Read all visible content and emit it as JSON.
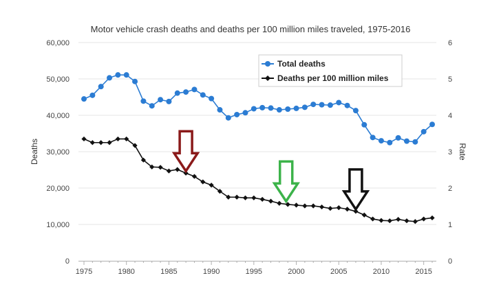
{
  "chart_data": {
    "type": "line",
    "title": "Motor vehicle crash deaths and deaths per 100 million miles traveled, 1975-2016",
    "ylabel": "Deaths",
    "y2label": "Rate",
    "xlim": [
      1975,
      2016
    ],
    "ylim": [
      0,
      60000
    ],
    "y2lim": [
      0,
      6
    ],
    "x_ticks": [
      "1975",
      "1980",
      "1985",
      "1990",
      "1995",
      "2000",
      "2005",
      "2010",
      "2015"
    ],
    "y_ticks": [
      "0",
      "10,000",
      "20,000",
      "30,000",
      "40,000",
      "50,000",
      "60,000"
    ],
    "y2_ticks": [
      "0",
      "1",
      "2",
      "3",
      "4",
      "5",
      "6"
    ],
    "grid": "horizontal",
    "legend_position": "top-right",
    "x": [
      1975,
      1976,
      1977,
      1978,
      1979,
      1980,
      1981,
      1982,
      1983,
      1984,
      1985,
      1986,
      1987,
      1988,
      1989,
      1990,
      1991,
      1992,
      1993,
      1994,
      1995,
      1996,
      1997,
      1998,
      1999,
      2000,
      2001,
      2002,
      2003,
      2004,
      2005,
      2006,
      2007,
      2008,
      2009,
      2010,
      2011,
      2012,
      2013,
      2014,
      2015,
      2016
    ],
    "series": [
      {
        "name": "Total deaths",
        "axis": "left",
        "color": "#2b7cd3",
        "marker": "circle",
        "values": [
          44500,
          45500,
          47900,
          50300,
          51100,
          51100,
          49300,
          43900,
          42600,
          44300,
          43800,
          46100,
          46400,
          47100,
          45600,
          44600,
          41500,
          39300,
          40200,
          40700,
          41800,
          42100,
          42000,
          41500,
          41700,
          41900,
          42200,
          43000,
          42900,
          42800,
          43500,
          42700,
          41300,
          37400,
          33900,
          33000,
          32500,
          33800,
          32900,
          32700,
          35500,
          37500
        ]
      },
      {
        "name": "Deaths per 100 million miles",
        "axis": "right",
        "color": "#111111",
        "marker": "diamond",
        "values": [
          3.35,
          3.25,
          3.25,
          3.25,
          3.35,
          3.35,
          3.17,
          2.77,
          2.58,
          2.57,
          2.47,
          2.51,
          2.41,
          2.32,
          2.17,
          2.08,
          1.91,
          1.75,
          1.75,
          1.73,
          1.73,
          1.69,
          1.64,
          1.58,
          1.55,
          1.53,
          1.51,
          1.51,
          1.48,
          1.44,
          1.46,
          1.42,
          1.36,
          1.26,
          1.15,
          1.11,
          1.1,
          1.14,
          1.1,
          1.08,
          1.15,
          1.18
        ]
      }
    ],
    "annotations": [
      {
        "shape": "down-arrow",
        "color": "#8b1a1a",
        "x": 1987,
        "y": 2.41
      },
      {
        "shape": "down-arrow",
        "color": "#3cb34a",
        "x": 1998.8,
        "y": 1.58
      },
      {
        "shape": "down-arrow",
        "color": "#111111",
        "x": 2007,
        "y": 1.36
      }
    ]
  }
}
